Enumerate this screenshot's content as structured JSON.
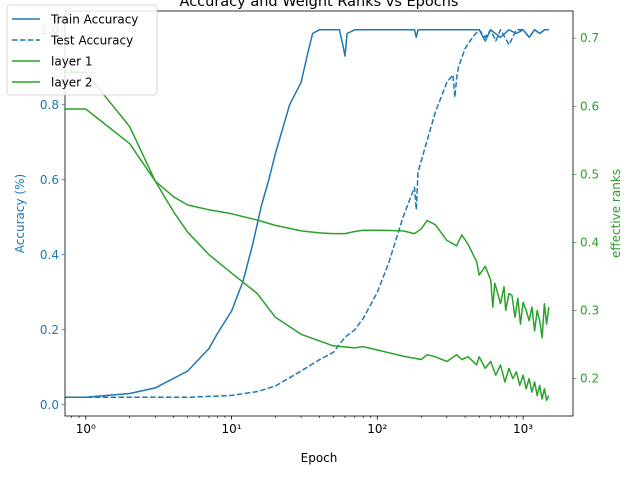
{
  "chart_data": {
    "type": "line",
    "title": "Accuracy and Weight Ranks vs Epochs",
    "xlabel": "Epoch",
    "x_scale": "log",
    "xlim": [
      0.72,
      2200
    ],
    "x_ticks": [
      1,
      10,
      100,
      1000
    ],
    "x_tick_labels": [
      "10⁰",
      "10¹",
      "10²",
      "10³"
    ],
    "grid": false,
    "legend": "top-left",
    "left_axis": {
      "label": "Accuracy (%)",
      "color": "#1f77b4",
      "ylim": [
        -0.03,
        1.05
      ],
      "ticks": [
        0.0,
        0.2,
        0.4,
        0.6,
        0.8,
        1.0
      ],
      "tick_labels": [
        "0.0",
        "0.2",
        "0.4",
        "0.6",
        "0.8",
        "1.0"
      ]
    },
    "right_axis": {
      "label": "effective ranks",
      "color": "#2ca02c",
      "ylim": [
        0.145,
        0.74
      ],
      "ticks": [
        0.2,
        0.3,
        0.4,
        0.5,
        0.6,
        0.7
      ],
      "tick_labels": [
        "0.2",
        "0.3",
        "0.4",
        "0.5",
        "0.6",
        "0.7"
      ]
    },
    "series": [
      {
        "name": "Train Accuracy",
        "axis": "left",
        "color": "#1f77b4",
        "dash": "solid",
        "x": [
          0.7,
          1,
          2,
          3,
          5,
          7,
          8,
          10,
          12,
          14,
          16,
          18,
          20,
          25,
          30,
          33,
          36,
          40,
          45,
          50,
          55,
          58,
          60,
          62,
          70,
          100,
          180,
          185,
          190,
          200,
          300,
          400,
          500,
          550,
          600,
          700,
          800,
          900,
          1000,
          1100,
          1200,
          1300,
          1400,
          1500
        ],
        "y": [
          0.02,
          0.02,
          0.03,
          0.045,
          0.09,
          0.15,
          0.19,
          0.25,
          0.33,
          0.43,
          0.53,
          0.6,
          0.67,
          0.8,
          0.86,
          0.93,
          0.99,
          1.0,
          1.0,
          1.0,
          1.0,
          0.96,
          0.93,
          0.99,
          1.0,
          1.0,
          1.0,
          0.98,
          1.0,
          1.0,
          1.0,
          1.0,
          1.0,
          0.97,
          1.0,
          0.98,
          1.0,
          0.99,
          1.0,
          0.98,
          1.0,
          0.99,
          1.0,
          1.0
        ]
      },
      {
        "name": "Test Accuracy",
        "axis": "left",
        "color": "#1f77b4",
        "dash": "dashed",
        "x": [
          0.7,
          1,
          2,
          5,
          10,
          15,
          20,
          30,
          40,
          50,
          60,
          70,
          80,
          100,
          120,
          150,
          180,
          185,
          190,
          200,
          250,
          300,
          330,
          340,
          350,
          360,
          400,
          450,
          500,
          550,
          600,
          650,
          700,
          750,
          800,
          900,
          1000,
          1100,
          1200,
          1300,
          1400,
          1500
        ],
        "y": [
          0.02,
          0.02,
          0.02,
          0.02,
          0.025,
          0.035,
          0.05,
          0.09,
          0.12,
          0.14,
          0.18,
          0.2,
          0.23,
          0.3,
          0.38,
          0.5,
          0.58,
          0.52,
          0.62,
          0.65,
          0.78,
          0.86,
          0.88,
          0.82,
          0.87,
          0.9,
          0.95,
          0.98,
          1.0,
          0.98,
          1.0,
          0.97,
          1.0,
          0.98,
          0.96,
          1.0,
          1.0,
          0.98,
          1.0,
          0.99,
          1.0,
          1.0
        ]
      },
      {
        "name": "layer 1",
        "axis": "right",
        "color": "#2ca02c",
        "dash": "solid",
        "x": [
          0.7,
          1,
          2,
          3,
          4,
          5,
          7,
          10,
          15,
          20,
          30,
          40,
          50,
          60,
          70,
          80,
          100,
          150,
          180,
          200,
          220,
          250,
          300,
          350,
          380,
          420,
          480,
          500,
          550,
          600,
          620,
          640,
          660,
          700,
          740,
          760,
          800,
          840,
          880,
          920,
          960,
          1000,
          1050,
          1100,
          1150,
          1200,
          1250,
          1300,
          1350,
          1400,
          1450,
          1500
        ],
        "y": [
          0.596,
          0.596,
          0.545,
          0.49,
          0.467,
          0.455,
          0.448,
          0.442,
          0.433,
          0.425,
          0.417,
          0.414,
          0.413,
          0.413,
          0.416,
          0.418,
          0.418,
          0.417,
          0.413,
          0.42,
          0.432,
          0.426,
          0.403,
          0.395,
          0.411,
          0.397,
          0.372,
          0.352,
          0.365,
          0.345,
          0.305,
          0.34,
          0.33,
          0.31,
          0.335,
          0.3,
          0.325,
          0.322,
          0.29,
          0.318,
          0.28,
          0.312,
          0.3,
          0.285,
          0.305,
          0.27,
          0.3,
          0.285,
          0.26,
          0.31,
          0.28,
          0.305
        ]
      },
      {
        "name": "layer 2",
        "axis": "right",
        "color": "#2ca02c",
        "dash": "solid",
        "x": [
          0.7,
          1,
          2,
          3,
          4,
          5,
          7,
          10,
          15,
          20,
          30,
          50,
          70,
          80,
          100,
          150,
          200,
          220,
          250,
          300,
          350,
          380,
          420,
          480,
          500,
          550,
          600,
          650,
          700,
          750,
          800,
          850,
          900,
          950,
          1000,
          1050,
          1100,
          1150,
          1200,
          1250,
          1300,
          1350,
          1400,
          1450,
          1500
        ],
        "y": [
          0.65,
          0.65,
          0.57,
          0.49,
          0.445,
          0.415,
          0.382,
          0.355,
          0.325,
          0.29,
          0.265,
          0.248,
          0.245,
          0.247,
          0.242,
          0.233,
          0.228,
          0.235,
          0.232,
          0.225,
          0.235,
          0.228,
          0.232,
          0.22,
          0.232,
          0.215,
          0.225,
          0.205,
          0.22,
          0.195,
          0.215,
          0.2,
          0.21,
          0.19,
          0.205,
          0.185,
          0.2,
          0.18,
          0.195,
          0.175,
          0.19,
          0.17,
          0.185,
          0.168,
          0.175
        ]
      }
    ]
  }
}
